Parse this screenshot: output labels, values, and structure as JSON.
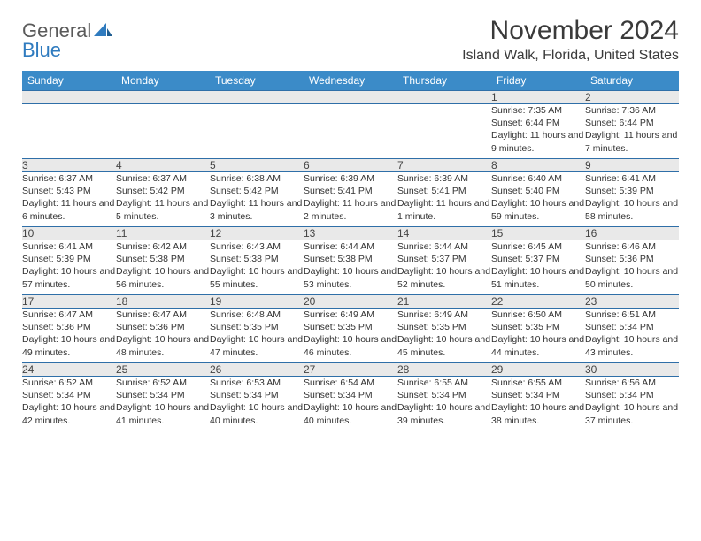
{
  "logo": {
    "word1": "General",
    "word2": "Blue"
  },
  "title": "November 2024",
  "location": "Island Walk, Florida, United States",
  "colors": {
    "header_bg": "#3b8bc8",
    "header_text": "#ffffff",
    "daynum_bg": "#e9e9e9",
    "border": "#2f6fa8",
    "logo_gray": "#5a5a5a",
    "logo_blue": "#2f7bbf"
  },
  "columns": [
    "Sunday",
    "Monday",
    "Tuesday",
    "Wednesday",
    "Thursday",
    "Friday",
    "Saturday"
  ],
  "weeks": [
    [
      null,
      null,
      null,
      null,
      null,
      {
        "num": "1",
        "sunrise": "Sunrise: 7:35 AM",
        "sunset": "Sunset: 6:44 PM",
        "daylight": "Daylight: 11 hours and 9 minutes."
      },
      {
        "num": "2",
        "sunrise": "Sunrise: 7:36 AM",
        "sunset": "Sunset: 6:44 PM",
        "daylight": "Daylight: 11 hours and 7 minutes."
      }
    ],
    [
      {
        "num": "3",
        "sunrise": "Sunrise: 6:37 AM",
        "sunset": "Sunset: 5:43 PM",
        "daylight": "Daylight: 11 hours and 6 minutes."
      },
      {
        "num": "4",
        "sunrise": "Sunrise: 6:37 AM",
        "sunset": "Sunset: 5:42 PM",
        "daylight": "Daylight: 11 hours and 5 minutes."
      },
      {
        "num": "5",
        "sunrise": "Sunrise: 6:38 AM",
        "sunset": "Sunset: 5:42 PM",
        "daylight": "Daylight: 11 hours and 3 minutes."
      },
      {
        "num": "6",
        "sunrise": "Sunrise: 6:39 AM",
        "sunset": "Sunset: 5:41 PM",
        "daylight": "Daylight: 11 hours and 2 minutes."
      },
      {
        "num": "7",
        "sunrise": "Sunrise: 6:39 AM",
        "sunset": "Sunset: 5:41 PM",
        "daylight": "Daylight: 11 hours and 1 minute."
      },
      {
        "num": "8",
        "sunrise": "Sunrise: 6:40 AM",
        "sunset": "Sunset: 5:40 PM",
        "daylight": "Daylight: 10 hours and 59 minutes."
      },
      {
        "num": "9",
        "sunrise": "Sunrise: 6:41 AM",
        "sunset": "Sunset: 5:39 PM",
        "daylight": "Daylight: 10 hours and 58 minutes."
      }
    ],
    [
      {
        "num": "10",
        "sunrise": "Sunrise: 6:41 AM",
        "sunset": "Sunset: 5:39 PM",
        "daylight": "Daylight: 10 hours and 57 minutes."
      },
      {
        "num": "11",
        "sunrise": "Sunrise: 6:42 AM",
        "sunset": "Sunset: 5:38 PM",
        "daylight": "Daylight: 10 hours and 56 minutes."
      },
      {
        "num": "12",
        "sunrise": "Sunrise: 6:43 AM",
        "sunset": "Sunset: 5:38 PM",
        "daylight": "Daylight: 10 hours and 55 minutes."
      },
      {
        "num": "13",
        "sunrise": "Sunrise: 6:44 AM",
        "sunset": "Sunset: 5:38 PM",
        "daylight": "Daylight: 10 hours and 53 minutes."
      },
      {
        "num": "14",
        "sunrise": "Sunrise: 6:44 AM",
        "sunset": "Sunset: 5:37 PM",
        "daylight": "Daylight: 10 hours and 52 minutes."
      },
      {
        "num": "15",
        "sunrise": "Sunrise: 6:45 AM",
        "sunset": "Sunset: 5:37 PM",
        "daylight": "Daylight: 10 hours and 51 minutes."
      },
      {
        "num": "16",
        "sunrise": "Sunrise: 6:46 AM",
        "sunset": "Sunset: 5:36 PM",
        "daylight": "Daylight: 10 hours and 50 minutes."
      }
    ],
    [
      {
        "num": "17",
        "sunrise": "Sunrise: 6:47 AM",
        "sunset": "Sunset: 5:36 PM",
        "daylight": "Daylight: 10 hours and 49 minutes."
      },
      {
        "num": "18",
        "sunrise": "Sunrise: 6:47 AM",
        "sunset": "Sunset: 5:36 PM",
        "daylight": "Daylight: 10 hours and 48 minutes."
      },
      {
        "num": "19",
        "sunrise": "Sunrise: 6:48 AM",
        "sunset": "Sunset: 5:35 PM",
        "daylight": "Daylight: 10 hours and 47 minutes."
      },
      {
        "num": "20",
        "sunrise": "Sunrise: 6:49 AM",
        "sunset": "Sunset: 5:35 PM",
        "daylight": "Daylight: 10 hours and 46 minutes."
      },
      {
        "num": "21",
        "sunrise": "Sunrise: 6:49 AM",
        "sunset": "Sunset: 5:35 PM",
        "daylight": "Daylight: 10 hours and 45 minutes."
      },
      {
        "num": "22",
        "sunrise": "Sunrise: 6:50 AM",
        "sunset": "Sunset: 5:35 PM",
        "daylight": "Daylight: 10 hours and 44 minutes."
      },
      {
        "num": "23",
        "sunrise": "Sunrise: 6:51 AM",
        "sunset": "Sunset: 5:34 PM",
        "daylight": "Daylight: 10 hours and 43 minutes."
      }
    ],
    [
      {
        "num": "24",
        "sunrise": "Sunrise: 6:52 AM",
        "sunset": "Sunset: 5:34 PM",
        "daylight": "Daylight: 10 hours and 42 minutes."
      },
      {
        "num": "25",
        "sunrise": "Sunrise: 6:52 AM",
        "sunset": "Sunset: 5:34 PM",
        "daylight": "Daylight: 10 hours and 41 minutes."
      },
      {
        "num": "26",
        "sunrise": "Sunrise: 6:53 AM",
        "sunset": "Sunset: 5:34 PM",
        "daylight": "Daylight: 10 hours and 40 minutes."
      },
      {
        "num": "27",
        "sunrise": "Sunrise: 6:54 AM",
        "sunset": "Sunset: 5:34 PM",
        "daylight": "Daylight: 10 hours and 40 minutes."
      },
      {
        "num": "28",
        "sunrise": "Sunrise: 6:55 AM",
        "sunset": "Sunset: 5:34 PM",
        "daylight": "Daylight: 10 hours and 39 minutes."
      },
      {
        "num": "29",
        "sunrise": "Sunrise: 6:55 AM",
        "sunset": "Sunset: 5:34 PM",
        "daylight": "Daylight: 10 hours and 38 minutes."
      },
      {
        "num": "30",
        "sunrise": "Sunrise: 6:56 AM",
        "sunset": "Sunset: 5:34 PM",
        "daylight": "Daylight: 10 hours and 37 minutes."
      }
    ]
  ]
}
